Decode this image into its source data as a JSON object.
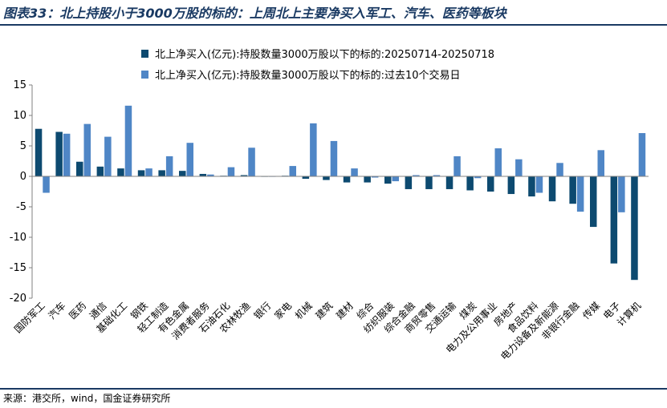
{
  "header": {
    "title": "图表33：北上持股小于3000万股的标的：上周北上主要净买入军工、汽车、医药等板块"
  },
  "footer": {
    "source": "来源：港交所，wind，国金证券研究所"
  },
  "colors": {
    "series_1": "#0d4a70",
    "series_2": "#4f86c6",
    "axis": "#808080",
    "title": "#1a3a63"
  },
  "chart_data": {
    "type": "bar",
    "title": "",
    "xlabel": "",
    "ylabel": "",
    "ylim": [
      -20,
      15
    ],
    "yticks": [
      -20,
      -15,
      -10,
      -5,
      0,
      5,
      10,
      15
    ],
    "grid": false,
    "legend_position": "top",
    "categories": [
      "国防军工",
      "汽车",
      "医药",
      "通信",
      "基础化工",
      "钢铁",
      "轻工制造",
      "有色金属",
      "消费者服务",
      "石油石化",
      "农林牧渔",
      "银行",
      "家电",
      "机械",
      "建筑",
      "建材",
      "综合",
      "纺织服装",
      "综合金融",
      "商贸零售",
      "交通运输",
      "煤炭",
      "电力及公用事业",
      "房地产",
      "食品饮料",
      "电力设备及新能源",
      "非银行金融",
      "传媒",
      "电子",
      "计算机"
    ],
    "series": [
      {
        "name": "北上净买入(亿元):持股数量3000万股以下的标的:20250714-20250718",
        "values": [
          7.8,
          7.3,
          2.4,
          1.6,
          1.3,
          1.0,
          1.0,
          0.9,
          0.4,
          0.1,
          0.2,
          0.0,
          0.1,
          -0.4,
          -0.6,
          -1.0,
          -1.0,
          -1.2,
          -2.1,
          -2.1,
          -2.1,
          -2.3,
          -2.5,
          -2.9,
          -3.3,
          -4.1,
          -4.5,
          -8.3,
          -14.3,
          -17.0
        ]
      },
      {
        "name": "北上净买入(亿元):持股数量3000万股以下的标的:过去10个交易日",
        "values": [
          -2.7,
          7.0,
          8.6,
          6.5,
          11.6,
          1.3,
          3.3,
          5.5,
          0.3,
          1.5,
          4.7,
          0.0,
          1.7,
          8.7,
          5.8,
          1.3,
          -0.2,
          -0.8,
          0.2,
          0.2,
          3.3,
          -0.3,
          4.6,
          2.8,
          -2.7,
          2.2,
          -5.8,
          4.3,
          -5.9,
          7.1
        ]
      }
    ]
  }
}
